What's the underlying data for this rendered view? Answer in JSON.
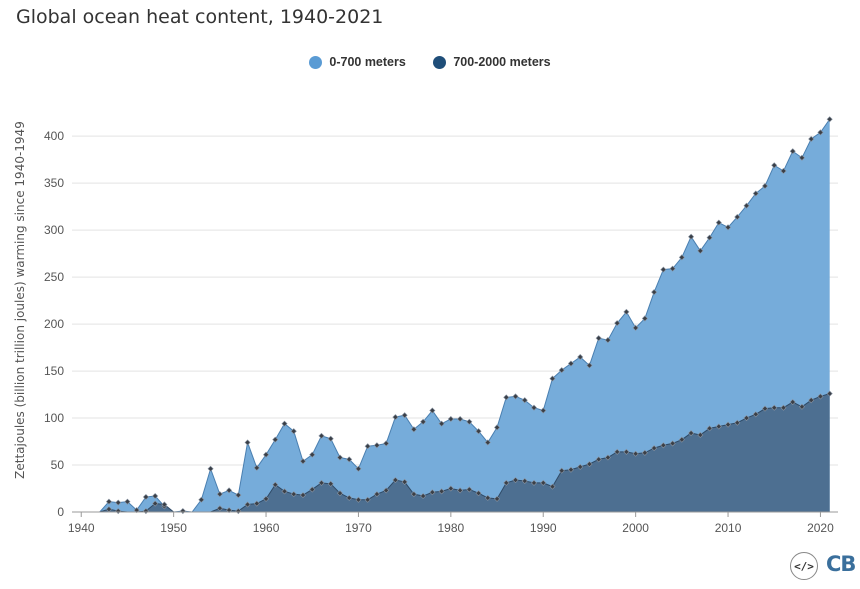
{
  "title": "Global ocean heat content, 1940-2021",
  "legend": [
    {
      "label": "0-700 meters",
      "color": "#5a9bd4"
    },
    {
      "label": "700-2000 meters",
      "color": "#1f4e79"
    }
  ],
  "logos": {
    "code_icon": "</>",
    "brand": "CB"
  },
  "chart_data": {
    "type": "area",
    "title": "Global ocean heat content, 1940-2021",
    "ylabel": "Zettajoules (billion trillion joules) warming since 1940-1949",
    "xlabel": "",
    "xlim": [
      1939,
      2021.9
    ],
    "ylim": [
      0,
      430
    ],
    "x_ticks": [
      1940,
      1950,
      1960,
      1970,
      1980,
      1990,
      2000,
      2010,
      2020
    ],
    "y_ticks": [
      0,
      50,
      100,
      150,
      200,
      250,
      300,
      350,
      400
    ],
    "grid": "horizontal",
    "legend_position": "top-center",
    "x": [
      1940,
      1941,
      1942,
      1943,
      1944,
      1945,
      1946,
      1947,
      1948,
      1949,
      1950,
      1951,
      1952,
      1953,
      1954,
      1955,
      1956,
      1957,
      1958,
      1959,
      1960,
      1961,
      1962,
      1963,
      1964,
      1965,
      1966,
      1967,
      1968,
      1969,
      1970,
      1971,
      1972,
      1973,
      1974,
      1975,
      1976,
      1977,
      1978,
      1979,
      1980,
      1981,
      1982,
      1983,
      1984,
      1985,
      1986,
      1987,
      1988,
      1989,
      1990,
      1991,
      1992,
      1993,
      1994,
      1995,
      1996,
      1997,
      1998,
      1999,
      2000,
      2001,
      2002,
      2003,
      2004,
      2005,
      2006,
      2007,
      2008,
      2009,
      2010,
      2011,
      2012,
      2013,
      2014,
      2015,
      2016,
      2017,
      2018,
      2019,
      2020,
      2021
    ],
    "series": [
      {
        "name": "0-700 meters",
        "color": "#6fa8d8",
        "values": [
          0,
          0,
          0,
          11,
          10,
          11,
          2,
          16,
          17,
          6,
          0,
          1,
          0,
          13,
          46,
          19,
          23,
          18,
          74,
          47,
          61,
          77,
          94,
          86,
          54,
          61,
          81,
          78,
          58,
          56,
          46,
          70,
          71,
          73,
          101,
          103,
          88,
          96,
          108,
          94,
          99,
          99,
          96,
          86,
          74,
          90,
          122,
          123,
          119,
          111,
          108,
          142,
          151,
          158,
          165,
          156,
          185,
          183,
          201,
          213,
          196,
          206,
          234,
          258,
          259,
          271,
          293,
          278,
          292,
          308,
          303,
          314,
          326,
          339,
          347,
          369,
          363,
          384,
          377,
          397,
          404,
          418
        ]
      },
      {
        "name": "700-2000 meters",
        "color": "#4d6d8f",
        "values": [
          0,
          0,
          0,
          3,
          1,
          0,
          0,
          1,
          9,
          8,
          0,
          0,
          0,
          0,
          0,
          4,
          2,
          1,
          8,
          9,
          14,
          29,
          22,
          19,
          18,
          24,
          31,
          30,
          20,
          15,
          13,
          13,
          19,
          23,
          34,
          32,
          19,
          17,
          21,
          22,
          25,
          23,
          24,
          20,
          15,
          14,
          31,
          34,
          33,
          31,
          31,
          27,
          44,
          45,
          48,
          51,
          56,
          58,
          64,
          64,
          62,
          63,
          68,
          71,
          73,
          77,
          84,
          82,
          89,
          91,
          93,
          95,
          100,
          104,
          110,
          111,
          111,
          117,
          112,
          119,
          123,
          126
        ]
      }
    ]
  }
}
